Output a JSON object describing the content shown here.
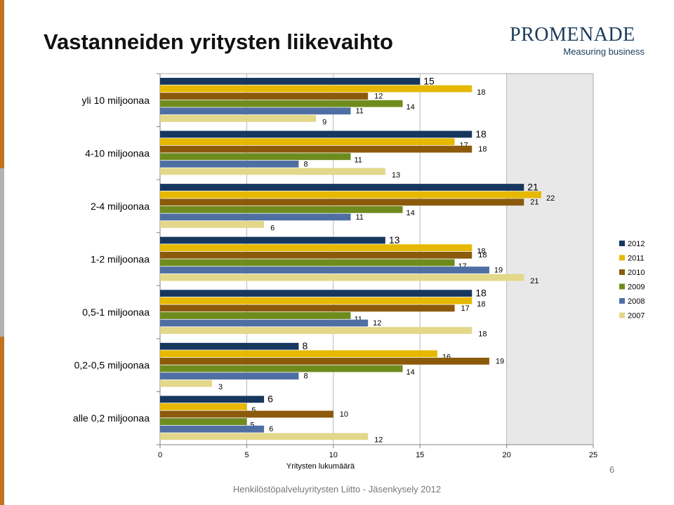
{
  "header": {
    "title": "Vastanneiden yritysten liikevaihto"
  },
  "logo": {
    "name": "PROMENADE",
    "tagline": "Measuring business"
  },
  "footer": {
    "text": "Henkilöstöpalveluyritysten Liitto - Jäsenkysely 2012",
    "page": "6"
  },
  "chart_data": {
    "type": "bar",
    "orientation": "horizontal",
    "title": "",
    "xlabel": "Yritysten lukumäärä",
    "ylabel": "",
    "xlim": [
      0,
      25
    ],
    "xticks": [
      0,
      5,
      10,
      15,
      20,
      25
    ],
    "legend_position": "right",
    "categories": [
      "yli 10 miljoonaa",
      "4-10 miljoonaa",
      "2-4 miljoonaa",
      "1-2 miljoonaa",
      "0,5-1 miljoonaa",
      "0,2-0,5 miljoonaa",
      "alle 0,2 miljoonaa"
    ],
    "series": [
      {
        "name": "2012",
        "color": "#17375e",
        "values": [
          15,
          18,
          21,
          13,
          18,
          8,
          6
        ]
      },
      {
        "name": "2011",
        "color": "#e6b800",
        "values": [
          18,
          17,
          22,
          18,
          18,
          16,
          5
        ]
      },
      {
        "name": "2010",
        "color": "#8b5a0b",
        "values": [
          12,
          18,
          21,
          18,
          17,
          19,
          10
        ]
      },
      {
        "name": "2009",
        "color": "#6e8c1e",
        "values": [
          14,
          11,
          14,
          17,
          11,
          14,
          5
        ]
      },
      {
        "name": "2008",
        "color": "#4f6fa3",
        "values": [
          11,
          8,
          11,
          19,
          12,
          8,
          6
        ]
      },
      {
        "name": "2007",
        "color": "#e3d78a",
        "values": [
          9,
          13,
          6,
          21,
          18,
          3,
          12
        ]
      }
    ]
  }
}
